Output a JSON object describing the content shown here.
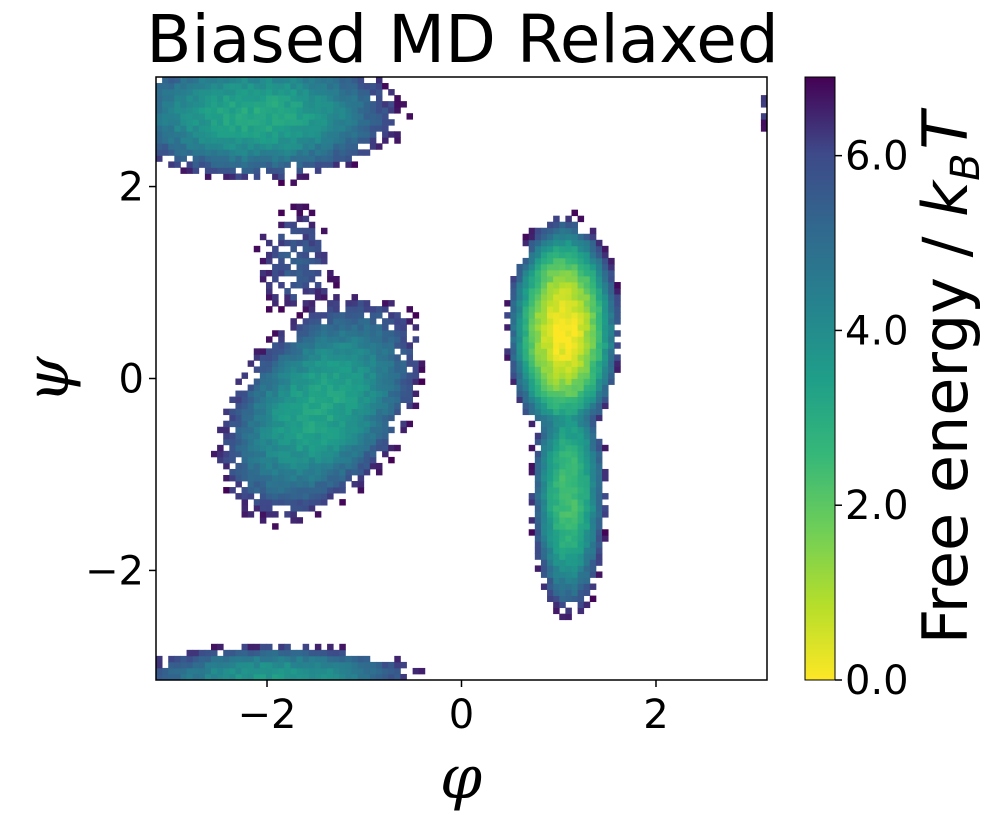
{
  "title": "Biased MD Relaxed",
  "chart_data": {
    "type": "heatmap",
    "title": "Biased MD Relaxed",
    "xlabel": "φ",
    "ylabel": "ψ",
    "xlim": [
      -3.14159,
      3.14159
    ],
    "ylim": [
      -3.14159,
      3.14159
    ],
    "x_ticks": [
      {
        "value": -2,
        "label": "−2"
      },
      {
        "value": 0,
        "label": "0"
      },
      {
        "value": 2,
        "label": "2"
      }
    ],
    "y_ticks": [
      {
        "value": -2,
        "label": "−2"
      },
      {
        "value": 0,
        "label": "0"
      },
      {
        "value": 2,
        "label": "2"
      }
    ],
    "colorbar": {
      "label_main": "Free energy / ",
      "label_symbol": "k",
      "label_subscript": "B",
      "label_end": "T",
      "range": [
        0.0,
        6.9
      ],
      "colormap": "viridis",
      "ticks": [
        {
          "value": 0.0,
          "label": "0.0"
        },
        {
          "value": 2.0,
          "label": "2.0"
        },
        {
          "value": 4.0,
          "label": "4.0"
        },
        {
          "value": 6.0,
          "label": "6.0"
        }
      ]
    },
    "bins": 100,
    "grid": false,
    "regions": [
      {
        "name": "beta-basin",
        "phi_center": -2.1,
        "psi_center": 2.75,
        "phi_sigma": 0.75,
        "psi_sigma": 0.35,
        "min_free_energy": 3.1
      },
      {
        "name": "alpha-R-basin",
        "phi_center": -1.45,
        "psi_center": -0.3,
        "phi_sigma": 0.5,
        "psi_sigma": 0.6,
        "tilt": -0.35,
        "min_free_energy": 3.2
      },
      {
        "name": "bridge",
        "phi_center": -1.7,
        "psi_center": 1.2,
        "phi_sigma": 0.35,
        "psi_sigma": 0.5,
        "min_free_energy": 5.6
      },
      {
        "name": "bottom-wrap",
        "phi_center": -1.9,
        "psi_center": -3.1,
        "phi_sigma": 0.8,
        "psi_sigma": 0.18,
        "min_free_energy": 3.6
      },
      {
        "name": "alpha-L-basin",
        "phi_center": 1.05,
        "psi_center": 0.5,
        "phi_sigma": 0.22,
        "psi_sigma": 0.45,
        "min_free_energy": 0.0
      },
      {
        "name": "alpha-L-tail",
        "phi_center": 1.1,
        "psi_center": -1.2,
        "phi_sigma": 0.18,
        "psi_sigma": 0.6,
        "min_free_energy": 2.3
      },
      {
        "name": "right-edge-strip",
        "phi_center": 3.1,
        "psi_center": 2.8,
        "phi_sigma": 0.06,
        "psi_sigma": 0.3,
        "min_free_energy": 6.3
      }
    ]
  }
}
